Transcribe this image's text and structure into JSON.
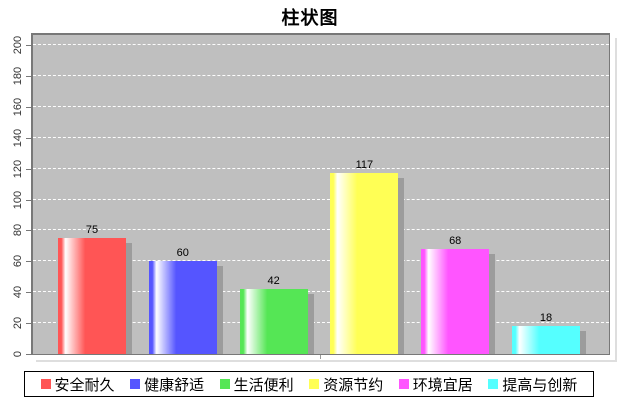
{
  "chart_data": {
    "type": "bar",
    "title": "柱状图",
    "categories": [
      "安全耐久",
      "健康舒适",
      "生活便利",
      "资源节约",
      "环境宜居",
      "提高与创新"
    ],
    "values": [
      75,
      60,
      42,
      117,
      68,
      18
    ],
    "value_labels": [
      "75",
      "60",
      "42",
      "117",
      "68",
      "18"
    ],
    "bar_colors": [
      "#ff5555",
      "#5555ff",
      "#55e655",
      "#ffff55",
      "#ff55ff",
      "#55ffff"
    ],
    "xlabel": "",
    "ylabel": "",
    "ylim": [
      0,
      200
    ],
    "ytick_step": 20,
    "ytick_labels": [
      "0",
      "20",
      "40",
      "60",
      "80",
      "100",
      "120",
      "140",
      "160",
      "180",
      "200"
    ],
    "grid": "horizontal white dashed gridlines",
    "plot_background": "#bfbfbf",
    "bar_shadow_color": "#9c9c9c",
    "legend_position": "bottom"
  },
  "legend": {
    "items": [
      {
        "label": "安全耐久",
        "color": "#ff5555"
      },
      {
        "label": "健康舒适",
        "color": "#5555ff"
      },
      {
        "label": "生活便利",
        "color": "#55e655"
      },
      {
        "label": "资源节约",
        "color": "#ffff55"
      },
      {
        "label": "环境宜居",
        "color": "#ff55ff"
      },
      {
        "label": "提高与创新",
        "color": "#55ffff"
      }
    ]
  }
}
